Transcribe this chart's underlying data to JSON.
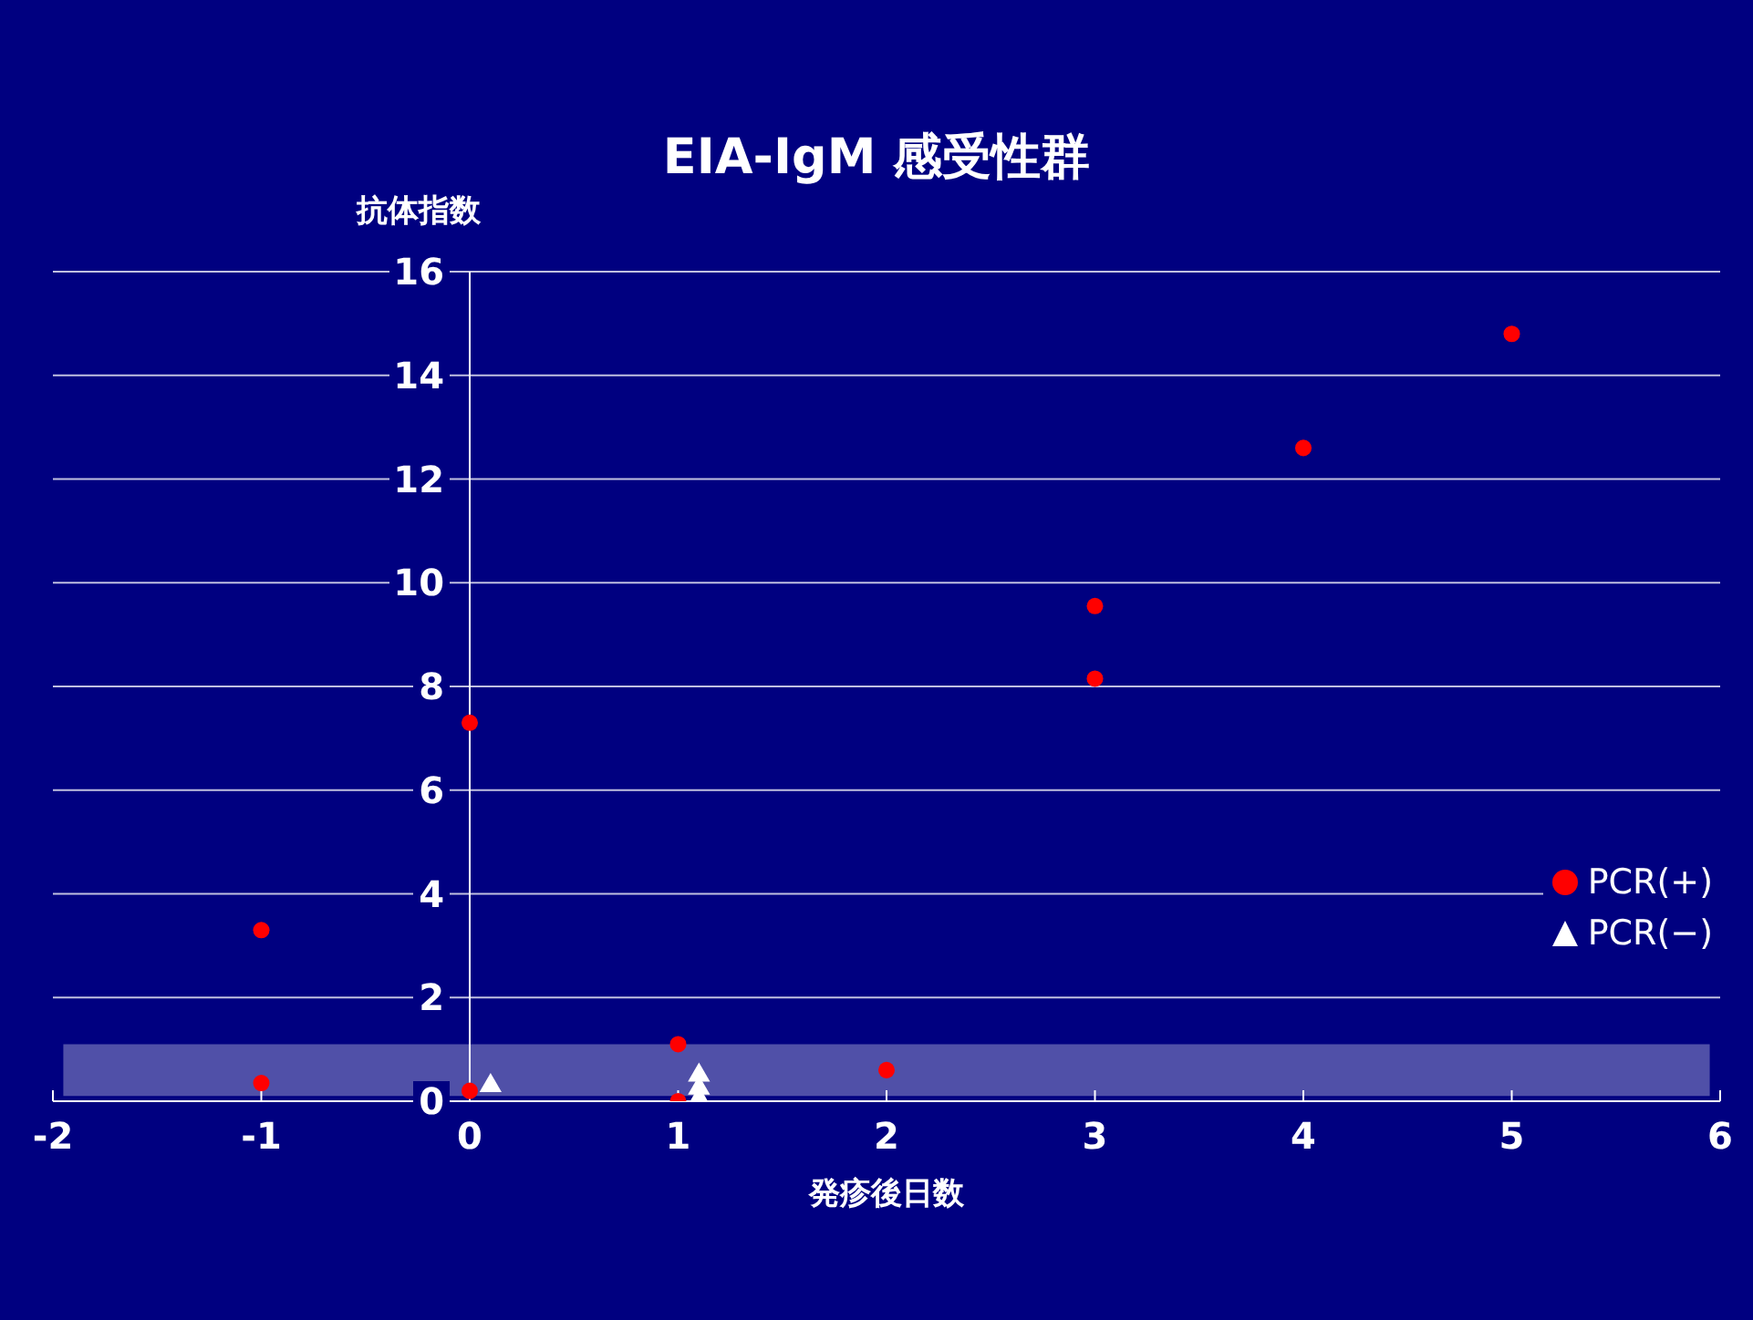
{
  "chart_data": {
    "type": "scatter",
    "title": "EIA-IgM  感受性群",
    "xlabel": "発疹後日数",
    "ylabel": "抗体指数",
    "xlim": [
      -2,
      6
    ],
    "xticks": [
      -2,
      -1,
      0,
      1,
      2,
      3,
      4,
      5,
      6
    ],
    "ylim": [
      0,
      16
    ],
    "yticks": [
      0,
      2,
      4,
      6,
      8,
      10,
      12,
      14,
      16
    ],
    "grid": "y",
    "legend": "right",
    "bands": [
      {
        "axis": "y",
        "from": 0.1,
        "to": 1.1,
        "color": "#5050a8"
      }
    ],
    "series": [
      {
        "name": "PCR(+)",
        "color": "#ff0000",
        "marker": "circle",
        "x": [
          -1,
          -1,
          0,
          0,
          1,
          1,
          2,
          3,
          3,
          4,
          5
        ],
        "values": [
          3.3,
          0.35,
          7.3,
          0.2,
          1.1,
          0,
          0.6,
          9.55,
          8.15,
          12.6,
          14.8
        ]
      },
      {
        "name": "PCR(−)",
        "color": "#ffffff",
        "marker": "triangle",
        "x": [
          0.1,
          1.1,
          1.1,
          1.1
        ],
        "values": [
          0.3,
          0.5,
          0.25,
          0.05
        ]
      }
    ]
  }
}
